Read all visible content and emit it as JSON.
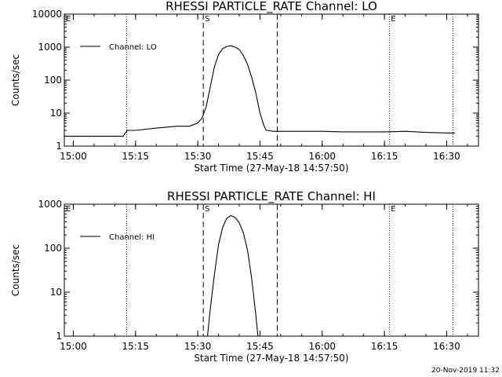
{
  "footer": {
    "timestamp": "20-Nov-2019 11:32"
  },
  "chart_data": [
    {
      "type": "line",
      "title": "RHESSI PARTICLE_RATE Channel: LO",
      "xlabel": "Start Time (27-May-18 14:57:50)",
      "ylabel": "Counts/sec",
      "yscale": "log",
      "ylim": [
        1,
        10000
      ],
      "xlim": [
        "14:57:50",
        "16:37:40"
      ],
      "xticks": [
        "15:00",
        "15:15",
        "15:30",
        "15:45",
        "16:00",
        "16:15",
        "16:30"
      ],
      "yticks": [
        "1",
        "10",
        "100",
        "1000",
        "10000"
      ],
      "legend": {
        "position": "top-left",
        "label": "Channel: LO"
      },
      "markers": [
        {
          "time": "14:57:50",
          "style": "dotted",
          "label": "E"
        },
        {
          "time": "15:12:50",
          "style": "dotted",
          "label": ""
        },
        {
          "time": "15:31:20",
          "style": "dashed",
          "label": "S"
        },
        {
          "time": "15:49:10",
          "style": "dashed",
          "label": ""
        },
        {
          "time": "16:16:10",
          "style": "dotted",
          "label": "E"
        },
        {
          "time": "16:31:30",
          "style": "dotted",
          "label": ""
        }
      ],
      "series": [
        {
          "name": "Channel: LO",
          "x": [
            "14:57:50",
            "15:00",
            "15:05",
            "15:10",
            "15:12",
            "15:13",
            "15:15",
            "15:20",
            "15:25",
            "15:28",
            "15:30",
            "15:31",
            "15:32",
            "15:33",
            "15:34",
            "15:35",
            "15:36",
            "15:37",
            "15:38",
            "15:39",
            "15:40",
            "15:41",
            "15:42",
            "15:43",
            "15:44",
            "15:45",
            "15:46",
            "15:46:30",
            "15:47",
            "15:48",
            "15:50",
            "15:55",
            "16:00",
            "16:05",
            "16:10",
            "16:15",
            "16:20",
            "16:25",
            "16:30",
            "16:32"
          ],
          "y": [
            2,
            2,
            2,
            2,
            2,
            3,
            3,
            3.5,
            4,
            4,
            5,
            7,
            15,
            60,
            250,
            600,
            900,
            1050,
            1100,
            1000,
            850,
            550,
            300,
            120,
            40,
            10,
            4,
            3,
            3,
            2.8,
            2.8,
            2.8,
            2.8,
            2.7,
            2.7,
            2.7,
            2.8,
            2.6,
            2.5,
            2.5
          ]
        }
      ]
    },
    {
      "type": "line",
      "title": "RHESSI PARTICLE_RATE Channel: HI",
      "xlabel": "Start Time (27-May-18 14:57:50)",
      "ylabel": "Counts/sec",
      "yscale": "log",
      "ylim": [
        1,
        1000
      ],
      "xlim": [
        "14:57:50",
        "16:37:40"
      ],
      "xticks": [
        "15:00",
        "15:15",
        "15:30",
        "15:45",
        "16:00",
        "16:15",
        "16:30"
      ],
      "yticks": [
        "1",
        "10",
        "100",
        "1000"
      ],
      "legend": {
        "position": "top-left",
        "label": "Channel: HI"
      },
      "markers": [
        {
          "time": "14:57:50",
          "style": "dotted",
          "label": "E"
        },
        {
          "time": "15:12:50",
          "style": "dotted",
          "label": ""
        },
        {
          "time": "15:31:20",
          "style": "dashed",
          "label": "S"
        },
        {
          "time": "15:49:10",
          "style": "dashed",
          "label": ""
        },
        {
          "time": "16:16:10",
          "style": "dotted",
          "label": "E"
        },
        {
          "time": "16:31:30",
          "style": "dotted",
          "label": ""
        }
      ],
      "series": [
        {
          "name": "Channel: HI",
          "x": [
            "15:32:20",
            "15:33",
            "15:34",
            "15:35",
            "15:36",
            "15:37",
            "15:38",
            "15:39",
            "15:40",
            "15:41",
            "15:42",
            "15:43",
            "15:44",
            "15:44:30"
          ],
          "y": [
            1,
            4,
            25,
            120,
            300,
            480,
            550,
            500,
            380,
            220,
            90,
            20,
            3,
            1
          ]
        }
      ]
    }
  ]
}
